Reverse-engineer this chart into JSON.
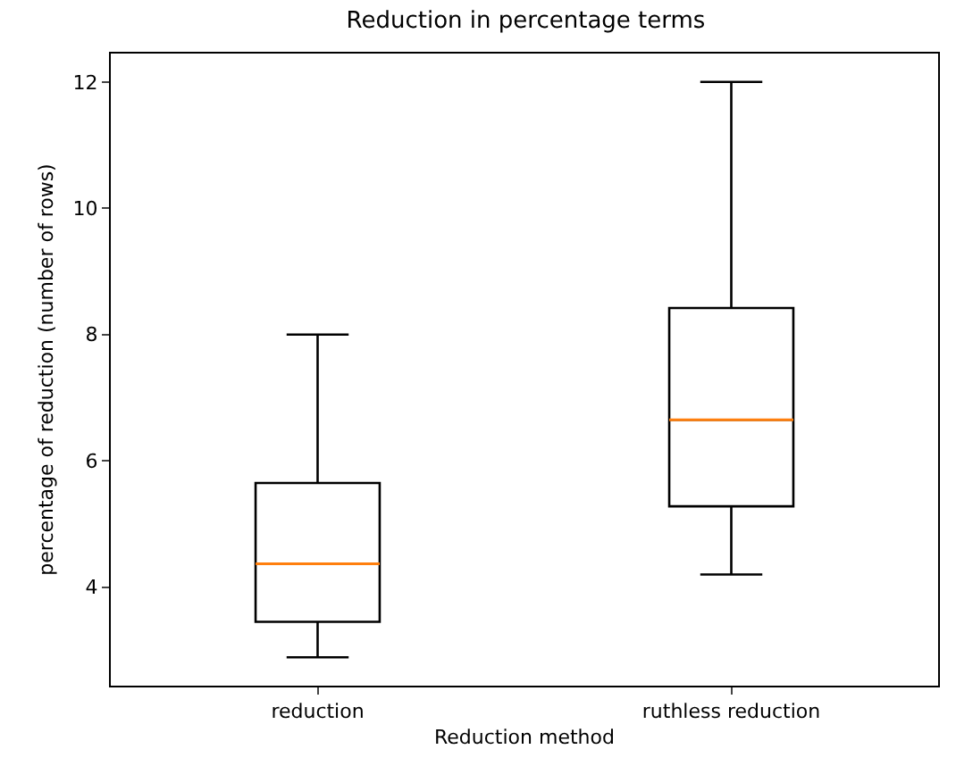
{
  "chart_data": {
    "type": "box",
    "title": "Reduction in percentage terms",
    "xlabel": "Reduction method",
    "ylabel": "percentage of reduction (number of rows)",
    "categories": [
      "reduction",
      "ruthless reduction"
    ],
    "series": [
      {
        "color": "#000000",
        "boxes": [
          {
            "low": 2.89,
            "q1": 3.45,
            "median": 4.37,
            "q3": 5.65,
            "high": 8.0
          },
          {
            "low": 4.2,
            "q1": 5.28,
            "median": 6.65,
            "q3": 8.42,
            "high": 12.0
          }
        ]
      }
    ],
    "ylim": [
      2.44,
      12.45
    ],
    "yticks": [
      4,
      6,
      8,
      10,
      12
    ]
  }
}
